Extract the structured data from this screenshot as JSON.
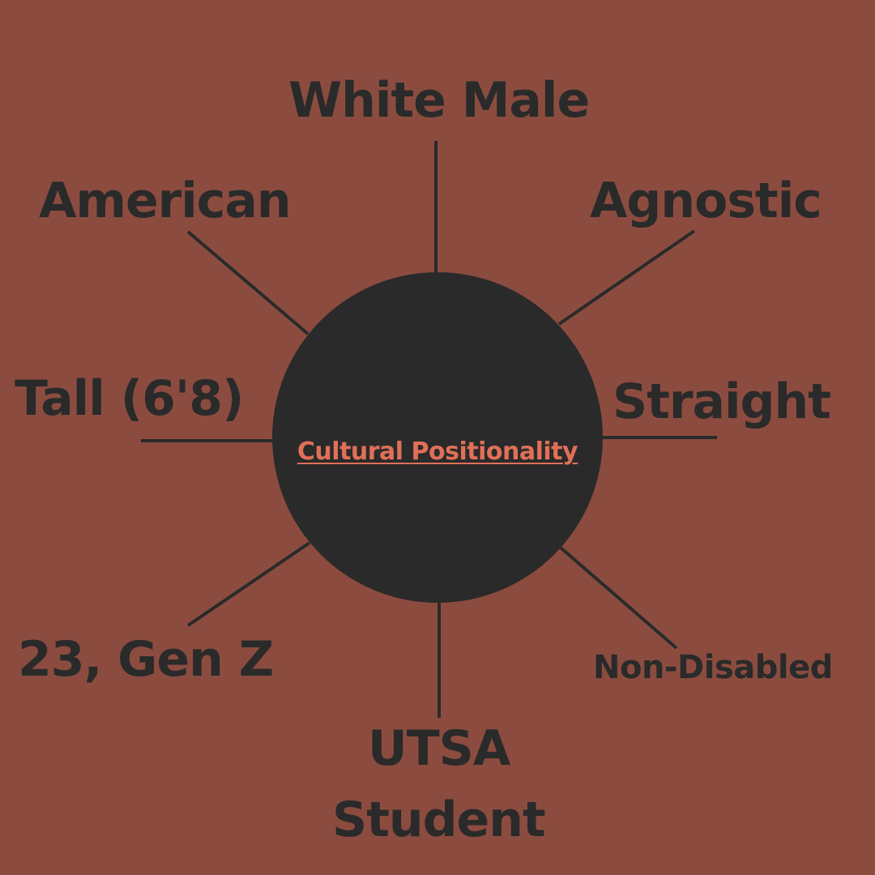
{
  "diagram": {
    "center": {
      "title": "Cultural Positionality"
    },
    "nodes": [
      {
        "id": "white-male",
        "label": "White Male"
      },
      {
        "id": "agnostic",
        "label": "Agnostic"
      },
      {
        "id": "straight",
        "label": "Straight"
      },
      {
        "id": "non-disabled",
        "label": "Non-Disabled"
      },
      {
        "id": "utsa-student",
        "label_line1": "UTSA",
        "label_line2": "Student"
      },
      {
        "id": "gen-z",
        "label": "23, Gen Z"
      },
      {
        "id": "tall",
        "label": "Tall (6'8)"
      },
      {
        "id": "american",
        "label": "American"
      }
    ],
    "colors": {
      "background": "#8b4c3f",
      "hub": "#2a2a2a",
      "text": "#2a2a2a",
      "hub_title": "#e07058"
    }
  }
}
